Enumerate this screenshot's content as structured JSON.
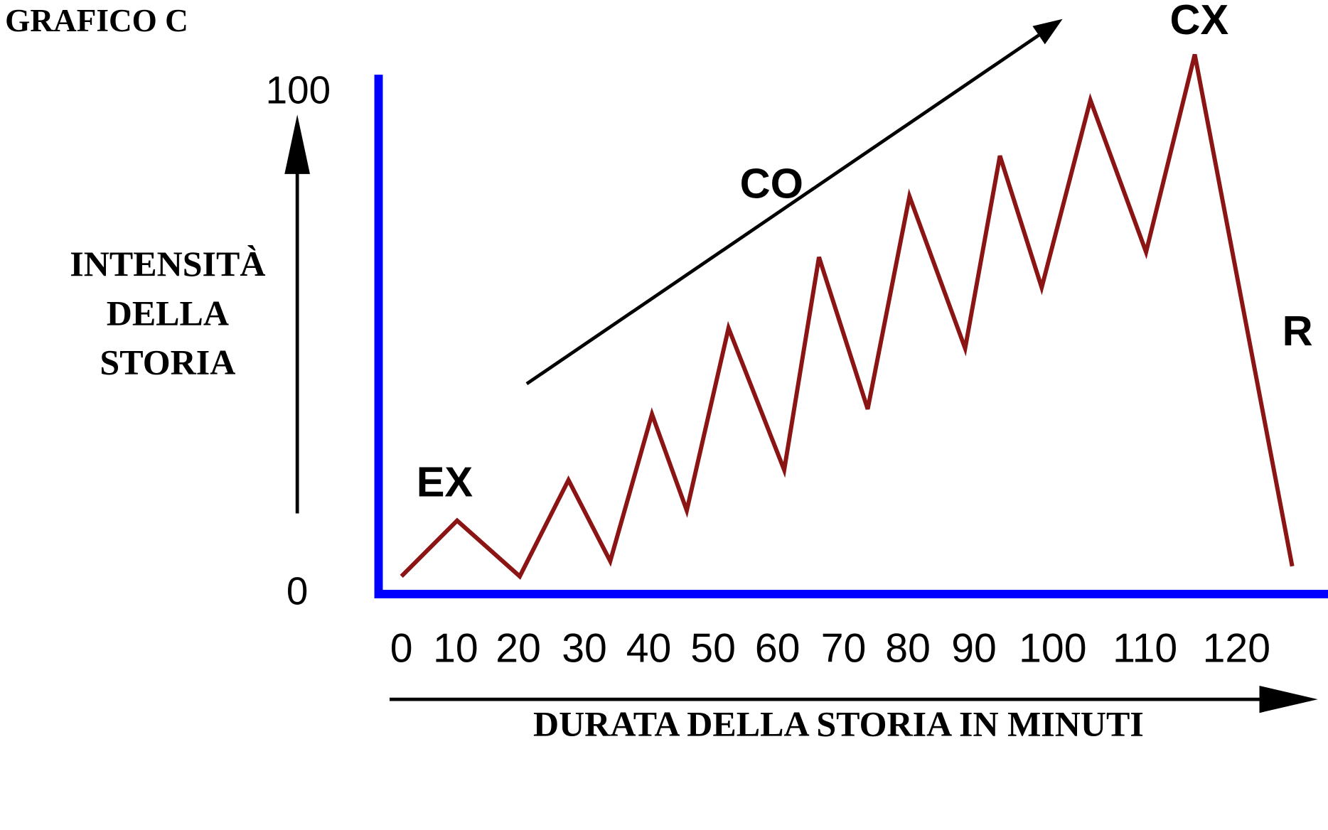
{
  "chart_data": {
    "type": "line",
    "title": "GRAFICO C",
    "xlabel": "DURATA DELLA STORIA IN MINUTI",
    "ylabel": [
      "INTENSITÀ",
      "DELLA",
      "STORIA"
    ],
    "x_ticks": [
      "0",
      "10",
      "20",
      "30",
      "40",
      "50",
      "60",
      "70",
      "80",
      "90",
      "100",
      "110",
      "120"
    ],
    "y_ticks": [
      "0",
      "100"
    ],
    "xlim": [
      0,
      120
    ],
    "ylim": [
      0,
      100
    ],
    "grid": false,
    "series": [
      {
        "color": "#8b1414",
        "x": [
          0,
          8,
          17,
          24,
          30,
          36,
          41,
          47,
          55,
          60,
          67,
          73,
          81,
          86,
          92,
          99,
          107,
          114,
          128
        ],
        "y": [
          3,
          14,
          3,
          22,
          6,
          35,
          16,
          52,
          24,
          66,
          36,
          78,
          48,
          86,
          60,
          97,
          67,
          106,
          5
        ]
      }
    ],
    "annotations": [
      {
        "text": "EX"
      },
      {
        "text": "CO"
      },
      {
        "text": "CX"
      },
      {
        "text": "R"
      }
    ],
    "trend_arrow": {
      "from": [
        18,
        41
      ],
      "to": [
        95,
        113
      ]
    },
    "axis_color": "#0000ff",
    "arrow_color": "#000000"
  }
}
